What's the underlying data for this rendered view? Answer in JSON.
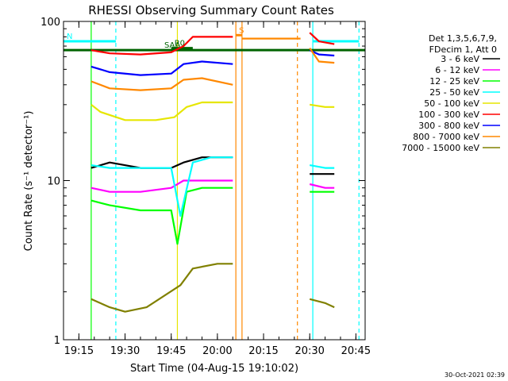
{
  "chart_data": {
    "type": "line",
    "title": "RHESSI Observing Summary Count Rates",
    "xlabel": "Start Time (04-Aug-15 19:10:02)",
    "ylabel": "Count Rate (s⁻¹ detector⁻¹)",
    "ylog": true,
    "ylim": [
      1,
      100
    ],
    "xlim": [
      "19:10",
      "20:48"
    ],
    "x_ticks": [
      "19:15",
      "19:30",
      "19:45",
      "20:00",
      "20:15",
      "20:30",
      "20:45"
    ],
    "y_ticks": [
      "1",
      "10",
      "100"
    ],
    "legend_position": "right",
    "legend_header": [
      "Det 1,3,5,6,7,9,",
      "FDecim 1, Att 0"
    ],
    "footer": "30-Oct-2021 02:39",
    "series": [
      {
        "name": "3 - 6 keV",
        "color": "#000000",
        "segments": [
          {
            "x": [
              "19:19",
              "19:25",
              "19:35",
              "19:45",
              "19:49",
              "19:55",
              "20:05"
            ],
            "y": [
              12,
              13,
              12,
              12,
              13,
              14,
              14
            ]
          },
          {
            "x": [
              "20:30",
              "20:35",
              "20:38"
            ],
            "y": [
              11,
              11,
              11
            ]
          }
        ]
      },
      {
        "name": "6 - 12 keV",
        "color": "#ff00ff",
        "segments": [
          {
            "x": [
              "19:19",
              "19:25",
              "19:35",
              "19:45",
              "19:49",
              "19:55",
              "20:05"
            ],
            "y": [
              9,
              8.5,
              8.5,
              9,
              10,
              10,
              10
            ]
          },
          {
            "x": [
              "20:30",
              "20:35",
              "20:38"
            ],
            "y": [
              9.5,
              9,
              9
            ]
          }
        ]
      },
      {
        "name": "12 - 25 keV",
        "color": "#00ff00",
        "segments": [
          {
            "x": [
              "19:19",
              "19:25",
              "19:35",
              "19:45",
              "19:47",
              "19:50",
              "19:55",
              "20:05"
            ],
            "y": [
              7.5,
              7,
              6.5,
              6.5,
              4,
              8.5,
              9,
              9
            ]
          },
          {
            "x": [
              "20:30",
              "20:35",
              "20:38"
            ],
            "y": [
              8.5,
              8.5,
              8.5
            ]
          }
        ]
      },
      {
        "name": "25 - 50 keV",
        "color": "#00ffff",
        "segments": [
          {
            "x": [
              "19:19",
              "19:25",
              "19:35",
              "19:45",
              "19:48",
              "19:52",
              "19:58",
              "20:05"
            ],
            "y": [
              12.5,
              12,
              12,
              12,
              6,
              13,
              14,
              14
            ]
          },
          {
            "x": [
              "20:30",
              "20:35",
              "20:38"
            ],
            "y": [
              12.5,
              12,
              12
            ]
          }
        ]
      },
      {
        "name": "50 - 100 keV",
        "color": "#e6e600",
        "segments": [
          {
            "x": [
              "19:19",
              "19:22",
              "19:30",
              "19:40",
              "19:46",
              "19:50",
              "19:55",
              "20:05"
            ],
            "y": [
              30,
              27,
              24,
              24,
              25,
              29,
              31,
              31
            ]
          },
          {
            "x": [
              "20:30",
              "20:35",
              "20:38"
            ],
            "y": [
              30,
              29,
              29
            ]
          }
        ]
      },
      {
        "name": "100 - 300 keV",
        "color": "#ff0000",
        "segments": [
          {
            "x": [
              "19:19",
              "19:25",
              "19:35",
              "19:45",
              "19:49",
              "19:52",
              "20:00",
              "20:05"
            ],
            "y": [
              66,
              63,
              62,
              64,
              70,
              80,
              80,
              80
            ]
          },
          {
            "x": [
              "20:30",
              "20:33",
              "20:38"
            ],
            "y": [
              85,
              75,
              72
            ]
          }
        ]
      },
      {
        "name": "300 - 800 keV",
        "color": "#0000ff",
        "segments": [
          {
            "x": [
              "19:19",
              "19:25",
              "19:35",
              "19:45",
              "19:49",
              "19:55",
              "20:05"
            ],
            "y": [
              52,
              48,
              46,
              47,
              54,
              56,
              54
            ]
          },
          {
            "x": [
              "20:30",
              "20:33",
              "20:38"
            ],
            "y": [
              66,
              62,
              61
            ]
          }
        ]
      },
      {
        "name": "800 - 7000 keV",
        "color": "#ff8800",
        "segments": [
          {
            "x": [
              "19:19",
              "19:25",
              "19:35",
              "19:45",
              "19:49",
              "19:55",
              "20:05"
            ],
            "y": [
              42,
              38,
              37,
              38,
              43,
              44,
              40
            ]
          },
          {
            "x": [
              "20:08",
              "20:27"
            ],
            "y": [
              78,
              78
            ]
          },
          {
            "x": [
              "20:30",
              "20:33",
              "20:38"
            ],
            "y": [
              68,
              56,
              55
            ]
          }
        ]
      },
      {
        "name": "7000 - 15000 keV",
        "color": "#808000",
        "segments": [
          {
            "x": [
              "19:19",
              "19:25",
              "19:30",
              "19:37",
              "19:48",
              "19:52",
              "20:00",
              "20:05"
            ],
            "y": [
              1.8,
              1.6,
              1.5,
              1.6,
              2.2,
              2.8,
              3,
              3
            ]
          },
          {
            "x": [
              "20:30",
              "20:35",
              "20:38"
            ],
            "y": [
              1.8,
              1.7,
              1.6
            ]
          }
        ]
      }
    ],
    "markers": [
      {
        "label": "N",
        "color": "#00ffff",
        "x_start": "19:10",
        "x_end": "19:27",
        "y": 75
      },
      {
        "label": "",
        "color": "#00ffff",
        "x_start": "20:31",
        "x_end": "20:46",
        "y": 75
      },
      {
        "label": "SAA",
        "color": "#006400",
        "x_start": "19:10",
        "x_end": "20:48",
        "y": 66
      },
      {
        "label": "R0",
        "color": "#006400",
        "x_start": "19:45",
        "x_end": "19:52",
        "y": 68
      },
      {
        "label": "S",
        "color": "#ff8800",
        "x_start": "20:06",
        "x_end": "20:08",
        "y": 82
      }
    ],
    "vertical_lines": [
      {
        "x": "19:27",
        "color": "#00ffff",
        "style": "dashed"
      },
      {
        "x": "20:31",
        "color": "#00ffff",
        "style": "solid"
      },
      {
        "x": "20:46",
        "color": "#00ffff",
        "style": "dashed"
      },
      {
        "x": "20:06",
        "color": "#ff8800",
        "style": "solid"
      },
      {
        "x": "20:08",
        "color": "#ff8800",
        "style": "solid"
      },
      {
        "x": "20:26",
        "color": "#ff8800",
        "style": "dashed"
      },
      {
        "x": "19:19",
        "color": "#00ff00",
        "style": "solid"
      },
      {
        "x": "19:47",
        "color": "#e6e600",
        "style": "solid"
      }
    ]
  }
}
